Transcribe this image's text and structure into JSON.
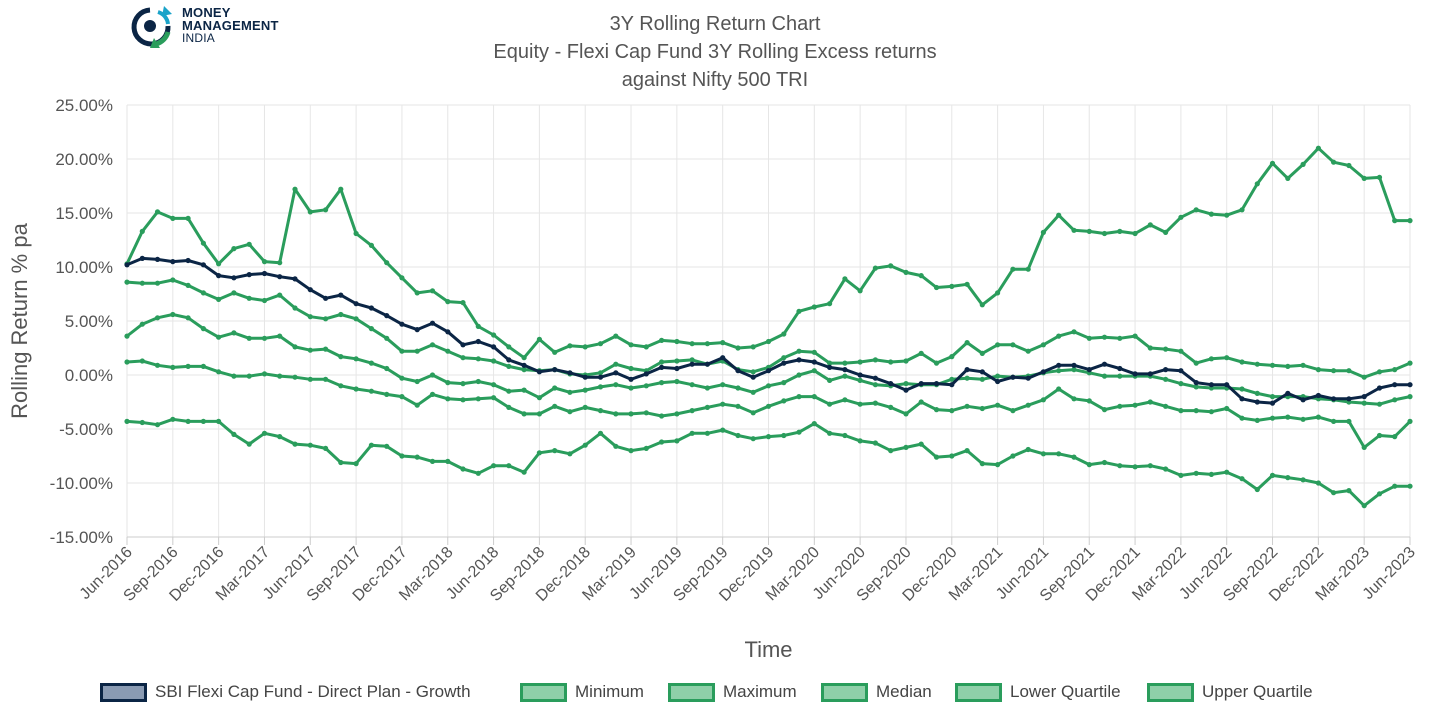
{
  "logo": {
    "line1": "MONEY",
    "line2": "MANAGEMENT",
    "line3": "INDIA"
  },
  "titles": {
    "line1": "3Y Rolling Return Chart",
    "line2": "Equity - Flexi Cap Fund 3Y Rolling Excess returns",
    "line3": "against Nifty 500 TRI"
  },
  "colors": {
    "fund": "#0b2545",
    "benchmark": "#2a9d5c",
    "fund_fill": "#8a9bb3",
    "benchmark_fill": "#8fd0a9",
    "grid": "#e6e6e6",
    "axis_text": "#555555"
  },
  "chart_data": {
    "type": "line",
    "xlabel": "Time",
    "ylabel": "Rolling Return % pa",
    "ylim": [
      -15,
      25
    ],
    "yticks": [
      "-15.00%",
      "-10.00%",
      "-5.00%",
      "0.00%",
      "5.00%",
      "10.00%",
      "15.00%",
      "20.00%",
      "25.00%"
    ],
    "xticks": [
      "Jun-2016",
      "Sep-2016",
      "Dec-2016",
      "Mar-2017",
      "Jun-2017",
      "Sep-2017",
      "Dec-2017",
      "Mar-2018",
      "Jun-2018",
      "Sep-2018",
      "Dec-2018",
      "Mar-2019",
      "Jun-2019",
      "Sep-2019",
      "Dec-2019",
      "Mar-2020",
      "Jun-2020",
      "Sep-2020",
      "Dec-2020",
      "Mar-2021",
      "Jun-2021",
      "Sep-2021",
      "Dec-2021",
      "Mar-2022",
      "Jun-2022",
      "Sep-2022",
      "Dec-2022",
      "Mar-2023",
      "Jun-2023"
    ],
    "grid": true,
    "legend_position": "bottom",
    "series": [
      {
        "name": "SBI Flexi Cap Fund - Direct Plan - Growth",
        "role": "fund",
        "values": [
          10.2,
          10.8,
          10.7,
          10.5,
          10.6,
          10.2,
          9.2,
          9.0,
          9.3,
          9.4,
          9.1,
          8.9,
          7.9,
          7.1,
          7.4,
          6.6,
          6.2,
          5.5,
          4.7,
          4.2,
          4.8,
          4.0,
          2.8,
          3.1,
          2.6,
          1.4,
          0.9,
          0.3,
          0.5,
          0.2,
          -0.2,
          -0.2,
          0.2,
          -0.4,
          0.1,
          0.7,
          0.6,
          1.0,
          1.0,
          1.6,
          0.4,
          -0.2,
          0.4,
          1.1,
          1.4,
          1.2,
          0.7,
          0.5,
          0.0,
          -0.3,
          -0.8,
          -1.4,
          -0.8,
          -0.8,
          -0.9,
          0.5,
          0.3,
          -0.6,
          -0.2,
          -0.3,
          0.3,
          0.9,
          0.9,
          0.5,
          1.0,
          0.6,
          0.1,
          0.1,
          0.5,
          0.4,
          -0.7,
          -0.9,
          -0.9,
          -2.2,
          -2.5,
          -2.6,
          -1.7,
          -2.3,
          -1.9,
          -2.2,
          -2.2,
          -2.0,
          -1.2,
          -0.9,
          -0.9
        ]
      },
      {
        "name": "Minimum",
        "role": "benchmark",
        "values": [
          -4.3,
          -4.4,
          -4.6,
          -4.1,
          -4.3,
          -4.3,
          -4.3,
          -5.5,
          -6.4,
          -5.4,
          -5.7,
          -6.4,
          -6.5,
          -6.8,
          -8.1,
          -8.2,
          -6.5,
          -6.6,
          -7.5,
          -7.6,
          -8.0,
          -8.0,
          -8.7,
          -9.1,
          -8.4,
          -8.4,
          -9.0,
          -7.2,
          -7.0,
          -7.3,
          -6.5,
          -5.4,
          -6.6,
          -7.0,
          -6.8,
          -6.2,
          -6.1,
          -5.4,
          -5.4,
          -5.1,
          -5.6,
          -5.9,
          -5.7,
          -5.6,
          -5.3,
          -4.5,
          -5.4,
          -5.6,
          -6.1,
          -6.3,
          -7.0,
          -6.7,
          -6.4,
          -7.6,
          -7.5,
          -7.0,
          -8.2,
          -8.3,
          -7.5,
          -6.9,
          -7.3,
          -7.3,
          -7.6,
          -8.3,
          -8.1,
          -8.4,
          -8.5,
          -8.4,
          -8.7,
          -9.3,
          -9.1,
          -9.2,
          -9.0,
          -9.6,
          -10.6,
          -9.3,
          -9.5,
          -9.7,
          -10.0,
          -10.9,
          -10.7,
          -12.1,
          -11.0,
          -10.3,
          -10.3
        ]
      },
      {
        "name": "Maximum",
        "role": "benchmark",
        "values": [
          10.3,
          13.3,
          15.1,
          14.5,
          14.5,
          12.2,
          10.3,
          11.7,
          12.1,
          10.5,
          10.4,
          17.2,
          15.1,
          15.3,
          17.2,
          13.1,
          12.0,
          10.4,
          9.0,
          7.6,
          7.8,
          6.8,
          6.7,
          4.5,
          3.7,
          2.6,
          1.6,
          3.3,
          2.1,
          2.7,
          2.6,
          2.9,
          3.6,
          2.8,
          2.6,
          3.2,
          3.1,
          2.9,
          2.9,
          3.0,
          2.5,
          2.6,
          3.1,
          3.8,
          5.9,
          6.3,
          6.6,
          8.9,
          7.8,
          9.9,
          10.1,
          9.5,
          9.2,
          8.1,
          8.2,
          8.4,
          6.5,
          7.6,
          9.8,
          9.8,
          13.2,
          14.8,
          13.4,
          13.3,
          13.1,
          13.3,
          13.1,
          13.9,
          13.2,
          14.6,
          15.3,
          14.9,
          14.8,
          15.3,
          17.7,
          19.6,
          18.2,
          19.5,
          21.0,
          19.7,
          19.4,
          18.2,
          18.3,
          14.3,
          14.3
        ]
      },
      {
        "name": "Median",
        "role": "benchmark",
        "values": [
          1.2,
          1.3,
          0.9,
          0.7,
          0.8,
          0.8,
          0.3,
          -0.1,
          -0.1,
          0.1,
          -0.1,
          -0.2,
          -0.4,
          -0.4,
          -1.0,
          -1.3,
          -1.5,
          -1.8,
          -2.0,
          -2.8,
          -1.8,
          -2.2,
          -2.3,
          -2.2,
          -2.1,
          -3.0,
          -3.6,
          -3.6,
          -2.9,
          -3.4,
          -3.0,
          -3.3,
          -3.6,
          -3.6,
          -3.5,
          -3.8,
          -3.6,
          -3.3,
          -3.0,
          -2.7,
          -2.9,
          -3.5,
          -2.9,
          -2.4,
          -2.0,
          -2.0,
          -2.7,
          -2.3,
          -2.7,
          -2.6,
          -3.0,
          -3.6,
          -2.5,
          -3.2,
          -3.3,
          -2.9,
          -3.1,
          -2.8,
          -3.3,
          -2.8,
          -2.3,
          -1.3,
          -2.2,
          -2.4,
          -3.2,
          -2.9,
          -2.8,
          -2.5,
          -2.9,
          -3.3,
          -3.3,
          -3.4,
          -3.1,
          -4.0,
          -4.2,
          -4.0,
          -3.9,
          -4.1,
          -3.9,
          -4.3,
          -4.3,
          -6.7,
          -5.6,
          -5.7,
          -4.3
        ]
      },
      {
        "name": "Lower Quartile",
        "role": "benchmark",
        "values": [
          3.6,
          4.7,
          5.3,
          5.6,
          5.3,
          4.3,
          3.5,
          3.9,
          3.4,
          3.4,
          3.6,
          2.6,
          2.3,
          2.4,
          1.7,
          1.5,
          1.1,
          0.6,
          -0.3,
          -0.6,
          0.0,
          -0.7,
          -0.8,
          -0.6,
          -0.9,
          -1.5,
          -1.4,
          -2.1,
          -1.2,
          -1.6,
          -1.4,
          -1.1,
          -0.9,
          -1.2,
          -1.0,
          -0.7,
          -0.6,
          -0.9,
          -1.2,
          -0.9,
          -1.2,
          -1.6,
          -1.0,
          -0.7,
          0.0,
          0.4,
          -0.5,
          -0.1,
          -0.5,
          -0.9,
          -1.0,
          -0.8,
          -0.9,
          -0.9,
          -0.4,
          -0.3,
          -0.4,
          -0.1,
          -0.2,
          -0.1,
          0.2,
          0.4,
          0.5,
          0.2,
          -0.1,
          -0.1,
          -0.1,
          -0.1,
          -0.4,
          -0.8,
          -1.1,
          -1.2,
          -1.2,
          -1.3,
          -1.7,
          -2.0,
          -2.0,
          -2.0,
          -2.2,
          -2.3,
          -2.5,
          -2.6,
          -2.7,
          -2.3,
          -2.0
        ]
      },
      {
        "name": "Upper Quartile",
        "role": "benchmark",
        "values": [
          8.6,
          8.5,
          8.5,
          8.8,
          8.3,
          7.6,
          7.0,
          7.6,
          7.1,
          6.9,
          7.4,
          6.2,
          5.4,
          5.2,
          5.6,
          5.2,
          4.3,
          3.4,
          2.2,
          2.2,
          2.8,
          2.2,
          1.6,
          1.5,
          1.3,
          0.8,
          0.5,
          0.4,
          0.5,
          0.1,
          0.0,
          0.2,
          1.0,
          0.6,
          0.4,
          1.2,
          1.3,
          1.4,
          1.0,
          1.3,
          0.5,
          0.3,
          0.7,
          1.6,
          2.2,
          2.1,
          1.1,
          1.1,
          1.2,
          1.4,
          1.2,
          1.3,
          2.0,
          1.1,
          1.7,
          3.0,
          2.0,
          2.8,
          2.8,
          2.2,
          2.8,
          3.6,
          4.0,
          3.4,
          3.5,
          3.4,
          3.6,
          2.5,
          2.4,
          2.2,
          1.1,
          1.5,
          1.6,
          1.2,
          1.0,
          0.9,
          0.8,
          0.9,
          0.5,
          0.4,
          0.4,
          -0.2,
          0.3,
          0.5,
          1.1
        ]
      }
    ]
  }
}
